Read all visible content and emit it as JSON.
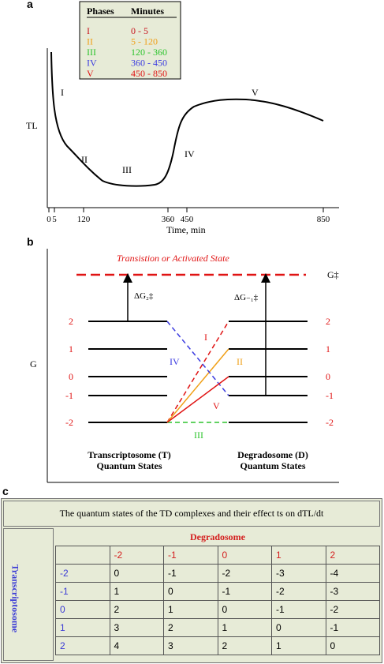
{
  "panel_a": {
    "label": "a",
    "legend": {
      "header_phase": "Phases",
      "header_minutes": "Minutes",
      "rows": [
        {
          "phase": "I",
          "minutes": "0 - 5",
          "color": "#c8141e"
        },
        {
          "phase": "II",
          "minutes": "5 - 120",
          "color": "#f0a018"
        },
        {
          "phase": "III",
          "minutes": "120 - 360",
          "color": "#2ec42e"
        },
        {
          "phase": "IV",
          "minutes": "360 - 450",
          "color": "#3c3ce0"
        },
        {
          "phase": "V",
          "minutes": "450 - 850",
          "color": "#e01414"
        }
      ]
    },
    "y_label": "TL",
    "x_label": "Time, min",
    "x_ticks": [
      "0",
      "5",
      "120",
      "360",
      "450",
      "850"
    ],
    "phase_labels": [
      "I",
      "II",
      "III",
      "IV",
      "V"
    ]
  },
  "panel_b": {
    "label": "b",
    "transition_label": "Transistion or Activated State",
    "g_double_dagger": "G‡",
    "y_label": "G",
    "delta_left": "ΔG₂‡",
    "delta_right": "ΔG₋₁‡",
    "levels": [
      "2",
      "1",
      "0",
      "-1",
      "-2"
    ],
    "phase_marks": [
      "I",
      "II",
      "III",
      "IV",
      "V"
    ],
    "left_caption_1": "Transcriptosome (T)",
    "left_caption_2": "Quantum States",
    "right_caption_1": "Degradosome (D)",
    "right_caption_2": "Quantum States"
  },
  "panel_c": {
    "label": "c",
    "caption": "The quantum states of the TD complexes and their effect ts on dTL/dt",
    "col_title": "Degradosome",
    "row_title": "Transcriptosome",
    "col_headers": [
      "-2",
      "-1",
      "0",
      "1",
      "2"
    ],
    "rows": [
      {
        "header": "-2",
        "cells": [
          "0",
          "-1",
          "-2",
          "-3",
          "-4"
        ]
      },
      {
        "header": "-1",
        "cells": [
          "1",
          "0",
          "-1",
          "-2",
          "-3"
        ]
      },
      {
        "header": "0",
        "cells": [
          "2",
          "1",
          "0",
          "-1",
          "-2"
        ]
      },
      {
        "header": "1",
        "cells": [
          "3",
          "2",
          "1",
          "0",
          "-1"
        ]
      },
      {
        "header": "2",
        "cells": [
          "4",
          "3",
          "2",
          "1",
          "0"
        ]
      }
    ]
  }
}
